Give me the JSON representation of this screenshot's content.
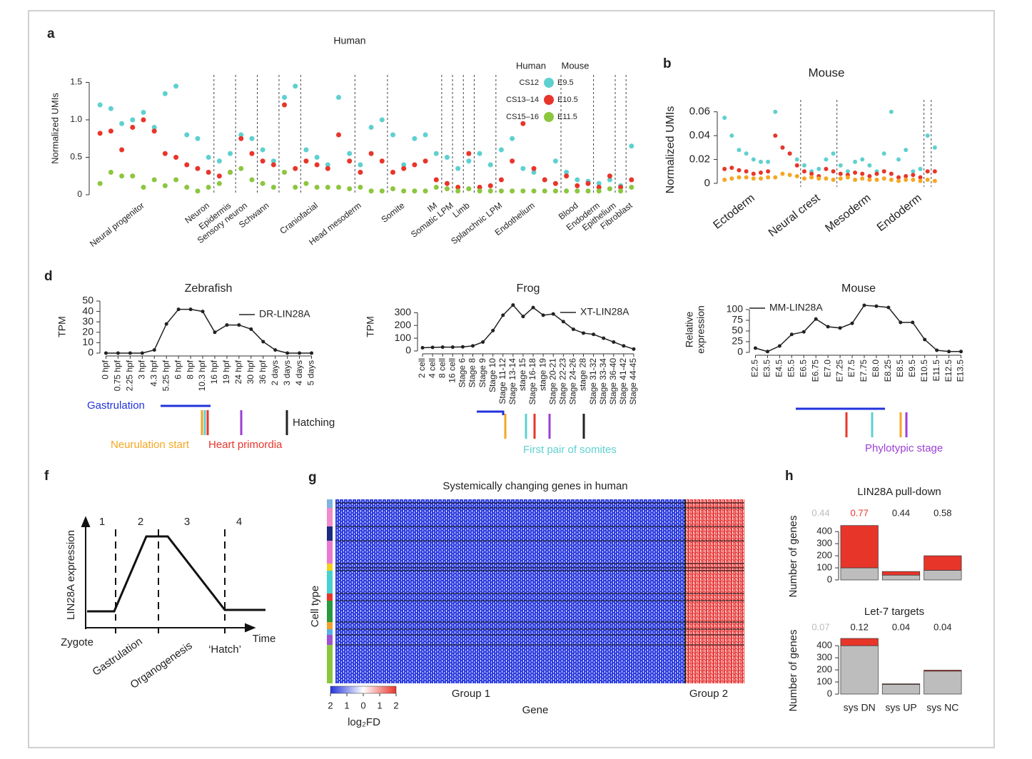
{
  "chart_data": [
    {
      "type": "dot",
      "panel": "a",
      "title": "Human",
      "ylabel": "Normalized UMIs",
      "x": [
        1,
        2,
        3,
        4,
        5,
        6,
        7,
        8,
        9,
        10,
        11,
        12,
        13,
        14,
        15,
        16,
        17,
        18,
        19,
        20,
        21,
        22,
        23,
        24,
        25,
        26,
        27,
        28,
        29,
        30,
        31,
        32,
        33,
        34,
        35,
        36,
        37,
        38,
        39,
        40,
        41,
        42,
        43,
        44,
        45,
        46,
        47,
        48,
        49,
        50
      ],
      "xlim": [
        0,
        51
      ],
      "ylim": [
        0,
        1.6
      ],
      "yticks": [
        0,
        0.5,
        {
          "value": 1,
          "label": "1.0"
        },
        1.5
      ],
      "legend_headers": [
        "Human",
        "Mouse"
      ],
      "series": [
        {
          "name": "CS12",
          "mouse": "E9.5",
          "color": "#5fd0d0",
          "values": [
            1.2,
            1.15,
            0.95,
            1.0,
            1.1,
            0.9,
            1.35,
            1.45,
            0.8,
            0.75,
            0.5,
            0.45,
            0.55,
            0.8,
            0.75,
            0.6,
            0.45,
            1.3,
            1.45,
            0.6,
            0.5,
            0.4,
            1.3,
            0.55,
            0.4,
            0.9,
            1.0,
            0.8,
            0.4,
            0.75,
            0.8,
            0.55,
            0.5,
            0.35,
            0.45,
            0.55,
            0.4,
            0.6,
            0.75,
            0.35,
            0.3,
            0.2,
            0.45,
            0.3,
            0.2,
            0.18,
            0.15,
            0.2,
            0.12,
            0.65
          ]
        },
        {
          "name": "CS13–14",
          "mouse": "E10.5",
          "color": "#e8352a",
          "values": [
            0.82,
            0.85,
            0.6,
            0.9,
            1.0,
            0.85,
            0.55,
            0.5,
            0.4,
            0.35,
            0.3,
            0.25,
            0.3,
            0.75,
            0.55,
            0.45,
            0.4,
            1.2,
            0.35,
            0.45,
            0.4,
            0.35,
            0.8,
            0.45,
            0.3,
            0.55,
            0.45,
            0.3,
            0.35,
            0.4,
            0.45,
            0.2,
            0.15,
            0.1,
            0.55,
            0.1,
            0.12,
            0.2,
            0.45,
            0.95,
            0.35,
            0.2,
            0.15,
            0.25,
            0.12,
            0.15,
            0.1,
            0.25,
            0.1,
            0.2
          ]
        },
        {
          "name": "CS15–16",
          "mouse": "E11.5",
          "color": "#8cc63f",
          "values": [
            0.15,
            0.3,
            0.25,
            0.25,
            0.1,
            0.2,
            0.12,
            0.2,
            0.1,
            0.05,
            0.1,
            0.15,
            0.3,
            0.35,
            0.2,
            0.15,
            0.1,
            0.3,
            0.1,
            0.15,
            0.1,
            0.1,
            0.1,
            0.08,
            0.1,
            0.05,
            0.05,
            0.08,
            0.05,
            0.05,
            0.05,
            0.1,
            0.08,
            0.05,
            0.08,
            0.05,
            0.05,
            0.05,
            0.05,
            0.05,
            0.05,
            0.05,
            0.05,
            0.05,
            0.05,
            0.05,
            0.05,
            0.08,
            0.05,
            0.1
          ]
        }
      ],
      "dividers": [
        11.5,
        13.5,
        15.5,
        17.5,
        19.5,
        24.5,
        27.5,
        32.5,
        33.5,
        34.5,
        35.5,
        37.5,
        43.5,
        46.5,
        48.5,
        49.5
      ],
      "xlabels": [
        {
          "value": 5,
          "label": "Neural progenitor"
        },
        {
          "value": 11,
          "label": "Neuron"
        },
        {
          "value": 13,
          "label": "Epidermis"
        },
        {
          "value": 14.5,
          "label": "Sensory neuron"
        },
        {
          "value": 16.5,
          "label": "Schwann"
        },
        {
          "value": 21,
          "label": "Craniofacial"
        },
        {
          "value": 25,
          "label": "Head mesoderm"
        },
        {
          "value": 29,
          "label": "Somite"
        },
        {
          "value": 32,
          "label": "IM"
        },
        {
          "value": 33.5,
          "label": "Somatic LPM"
        },
        {
          "value": 35,
          "label": "Limb"
        },
        {
          "value": 38,
          "label": "Splanchnic LPM"
        },
        {
          "value": 41,
          "label": "Endothelium"
        },
        {
          "value": 45,
          "label": "Blood"
        },
        {
          "value": 47,
          "label": "Endoderm"
        },
        {
          "value": 48.5,
          "label": "Epithelium"
        },
        {
          "value": 50,
          "label": "Fibroblast"
        }
      ]
    },
    {
      "type": "dot",
      "panel": "b",
      "title": "Mouse",
      "ylabel": "Normalized UMIs",
      "x": [
        1,
        2,
        3,
        4,
        5,
        6,
        7,
        8,
        9,
        10,
        11,
        12,
        13,
        14,
        15,
        16,
        17,
        18,
        19,
        20,
        21,
        22,
        23,
        24,
        25,
        26,
        27,
        28,
        29,
        30
      ],
      "xlim": [
        0,
        31
      ],
      "ylim": [
        -0.003,
        0.07
      ],
      "yticks": [
        0,
        0.02,
        0.04,
        0.06
      ],
      "series": [
        {
          "color": "#5fd0d0",
          "values": [
            0.055,
            0.04,
            0.028,
            0.025,
            0.02,
            0.018,
            0.018,
            0.06,
            0.03,
            0.025,
            0.02,
            0.015,
            0.01,
            0.012,
            0.02,
            0.025,
            0.015,
            0.01,
            0.018,
            0.02,
            0.015,
            0.01,
            0.025,
            0.06,
            0.02,
            0.028,
            0.01,
            0.012,
            0.04,
            0.03
          ]
        },
        {
          "color": "#e8352a",
          "values": [
            0.012,
            0.013,
            0.011,
            0.01,
            0.008,
            0.009,
            0.01,
            0.04,
            0.03,
            0.025,
            0.015,
            0.01,
            0.008,
            0.006,
            0.012,
            0.01,
            0.008,
            0.007,
            0.009,
            0.008,
            0.006,
            0.008,
            0.01,
            0.008,
            0.005,
            0.006,
            0.007,
            0.005,
            0.01,
            0.01
          ]
        },
        {
          "color": "#f5a623",
          "values": [
            0.003,
            0.004,
            0.005,
            0.005,
            0.004,
            0.004,
            0.005,
            0.005,
            0.008,
            0.007,
            0.006,
            0.004,
            0.005,
            0.004,
            0.004,
            0.003,
            0.004,
            0.005,
            0.003,
            0.004,
            0.003,
            0.003,
            0.004,
            0.003,
            0.002,
            0.003,
            0.003,
            0.002,
            0.003,
            0.002
          ]
        }
      ],
      "dividers": [
        11.5,
        16.5,
        28.5,
        29.5
      ],
      "xlabels": [
        {
          "value": 5,
          "label": "Ectoderm"
        },
        {
          "value": 14,
          "label": "Neural crest"
        },
        {
          "value": 21,
          "label": "Mesoderm"
        },
        {
          "value": 28,
          "label": "Endoderm"
        }
      ]
    },
    {
      "type": "line",
      "panel": "d",
      "title": "Zebrafish",
      "ylabel": [
        "TPM"
      ],
      "legend": "DR-LIN28A",
      "color": "#222222",
      "categories": [
        "0 hpf",
        "0.75 hpf",
        "2.25 hpf",
        "3 hpf",
        "4.3 hpf",
        "5.25 hpf",
        "6 hpf",
        "8 hpf",
        "10.3 hpf",
        "16 hpf",
        "19 hpf",
        "24 hpf",
        "30 hpf",
        "36 hpf",
        "2 days",
        "3 days",
        "4 days",
        "5 days"
      ],
      "values": [
        0,
        0,
        0,
        0,
        3,
        28,
        42,
        42,
        40,
        20,
        27,
        27,
        23,
        11,
        3,
        0,
        0,
        0
      ],
      "ylim": [
        0,
        50
      ],
      "yticks": [
        0,
        10,
        20,
        30,
        40,
        50
      ],
      "annotations": [
        {
          "text": "Gastrulation",
          "color": "#2233dd"
        },
        {
          "text": "Hatching",
          "color": "#222222"
        },
        {
          "text": "Neurulation start",
          "color": "#f5a623"
        },
        {
          "text": "Heart primordia",
          "color": "#e8352a"
        }
      ]
    },
    {
      "type": "line",
      "title": "Frog",
      "ylabel": [
        "TPM"
      ],
      "legend": "XT-LIN28A",
      "color": "#222222",
      "categories": [
        "2 cell",
        "4 cell",
        "8 cell",
        "16 cell",
        "Stage 6",
        "Stage 8",
        "Stage 9",
        "Stage 10",
        "Stage 11-12",
        "Stage 13-14",
        "stage 15",
        "Stage 16-18",
        "stage 19",
        "Stage 20-21",
        "Stage 22-23",
        "Stage 24-26",
        "stage 28",
        "Stage 31-32",
        "Stage 33-34",
        "Stage 36-40",
        "Stage 41-42",
        "Stage 44-45"
      ],
      "values": [
        25,
        28,
        30,
        30,
        32,
        40,
        70,
        160,
        280,
        360,
        270,
        340,
        280,
        290,
        230,
        170,
        140,
        130,
        100,
        70,
        40,
        15
      ],
      "ylim": [
        0,
        380
      ],
      "yticks": [
        0,
        100,
        200,
        300
      ],
      "annotations": [
        {
          "text": "First pair of somites",
          "color": "#5fd0d0"
        }
      ]
    },
    {
      "type": "line",
      "title": "Mouse",
      "ylabel": [
        "Relative",
        "expression"
      ],
      "legend": "MM-LIN28A",
      "color": "#222222",
      "categories": [
        "E2.5",
        "E3.5",
        "E4.5",
        "E5.5",
        "E6.5",
        "E6.75",
        "E7.0",
        "E7.25",
        "E7.5",
        "E7.75",
        "E8.0",
        "E8.25",
        "E8.5",
        "E9.5",
        "E10.5",
        "E11.5",
        "E12.5",
        "E13.5"
      ],
      "values": [
        10,
        2,
        15,
        42,
        48,
        78,
        60,
        57,
        68,
        110,
        108,
        105,
        70,
        70,
        30,
        5,
        2,
        2
      ],
      "ylim": [
        0,
        115
      ],
      "yticks": [
        0,
        25,
        50,
        75,
        100
      ],
      "annotations": [
        {
          "text": "Phylotypic stage",
          "color": "#9b3fd6"
        }
      ]
    },
    {
      "type": "diagram",
      "panel": "f",
      "ylabel": "LIN28A expression",
      "xlabel": "Time",
      "stages": [
        "1",
        "2",
        "3",
        "4"
      ],
      "xlabels": [
        "Zygote",
        "Gastrulation",
        "Organogenesis",
        "‘Hatch’"
      ]
    },
    {
      "type": "heatmap",
      "panel": "g",
      "title": "Systemically changing genes in human",
      "ylabel": "Cell type",
      "xlabel": "Gene",
      "groups": [
        "Group 1",
        "Group 2"
      ],
      "colorbar_label": "log₂FD",
      "colorbar_lim": [
        -2,
        2
      ],
      "colorbar_ticks": [
        {
          "value": -2,
          "label": "2"
        },
        {
          "value": -1,
          "label": "1"
        },
        0,
        1,
        2
      ]
    },
    {
      "type": "stacked_bar",
      "panel": "h",
      "title": "LIN28A pull-down",
      "ylabel": "Number of genes",
      "categories": [
        "sys DN",
        "sys UP",
        "sys NC"
      ],
      "ylim": [
        0,
        460
      ],
      "yticks": [
        0,
        100,
        200,
        300,
        400
      ],
      "series": [
        {
          "color": "#bdbdbd",
          "values": [
            100,
            40,
            80
          ]
        },
        {
          "color": "#e8352a",
          "values": [
            350,
            30,
            120
          ]
        }
      ],
      "ratios": [
        0.44,
        0.77,
        0.44,
        0.58
      ],
      "ratio_colors": [
        "#bbbbbb",
        "#e8352a",
        "#222222",
        "#222222"
      ]
    },
    {
      "type": "stacked_bar",
      "title": "Let-7 targets",
      "ylabel": "Number of genes",
      "categories": [
        "sys DN",
        "sys UP",
        "sys NC"
      ],
      "ylim": [
        0,
        460
      ],
      "yticks": [
        0,
        100,
        200,
        300,
        400
      ],
      "series": [
        {
          "color": "#bdbdbd",
          "values": [
            400,
            80,
            190
          ]
        },
        {
          "color": "#e8352a",
          "values": [
            60,
            5,
            8
          ]
        }
      ],
      "ratios": [
        0.07,
        0.12,
        0.04,
        0.04
      ],
      "ratio_colors": [
        "#bbbbbb",
        "#222222",
        "#222222",
        "#222222"
      ]
    }
  ]
}
